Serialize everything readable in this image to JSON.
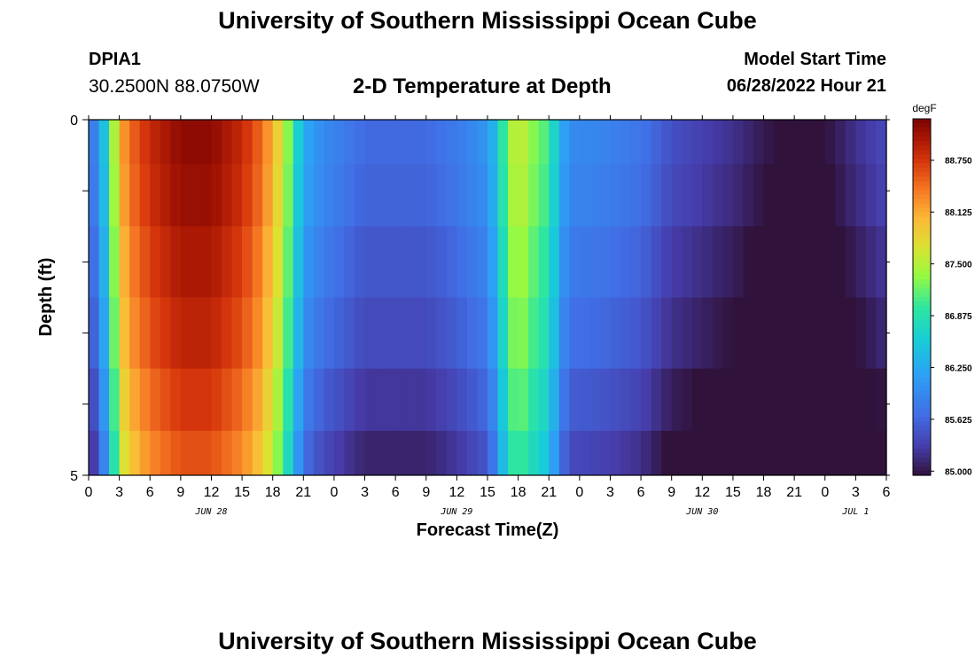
{
  "header": {
    "title": "University of Southern Mississippi Ocean Cube",
    "station": "DPIA1",
    "coordinates": "30.2500N  88.0750W",
    "subtitle": "2-D Temperature at Depth",
    "model_start_label": "Model Start Time",
    "model_start_value": "06/28/2022 Hour 21"
  },
  "footer": {
    "title": "University of Southern Mississippi Ocean Cube"
  },
  "chart_data": {
    "type": "heatmap",
    "xlabel": "Forecast Time(Z)",
    "ylabel": "Depth (ft)",
    "x_ticks": [
      "0",
      "3",
      "6",
      "9",
      "12",
      "15",
      "18",
      "21",
      "0",
      "3",
      "6",
      "9",
      "12",
      "15",
      "18",
      "21",
      "0",
      "3",
      "6",
      "9",
      "12",
      "15",
      "18",
      "21",
      "0",
      "3",
      "6"
    ],
    "x_range_hours": [
      0,
      78
    ],
    "day_labels": [
      {
        "label": "JUN 28",
        "hour": 12
      },
      {
        "label": "JUN 29",
        "hour": 36
      },
      {
        "label": "JUN 30",
        "hour": 60
      },
      {
        "label": "JUL 1",
        "hour": 75
      }
    ],
    "y_range_ft": [
      0,
      5
    ],
    "y_ticks": [
      "0",
      "5"
    ],
    "depth_levels_ft": [
      0.25,
      1.0,
      2.0,
      3.0,
      4.0,
      4.75
    ],
    "colorbar": {
      "unit": "degF",
      "min": 84.95,
      "max": 89.25,
      "ticks": [
        "88.750",
        "88.125",
        "87.500",
        "86.875",
        "86.250",
        "85.625",
        "85.000"
      ],
      "tick_values": [
        88.75,
        88.125,
        87.5,
        86.875,
        86.25,
        85.625,
        85.0
      ]
    },
    "time_profile_degF": [
      [
        0,
        85.6
      ],
      [
        1,
        86.0
      ],
      [
        2,
        86.8
      ],
      [
        3,
        88.0
      ],
      [
        4,
        88.4
      ],
      [
        6,
        88.8
      ],
      [
        9,
        89.1
      ],
      [
        12,
        89.1
      ],
      [
        15,
        88.8
      ],
      [
        17,
        88.4
      ],
      [
        18,
        88.0
      ],
      [
        19,
        87.6
      ],
      [
        20,
        86.9
      ],
      [
        21,
        86.2
      ],
      [
        23,
        85.9
      ],
      [
        27,
        85.6
      ],
      [
        33,
        85.6
      ],
      [
        36,
        85.75
      ],
      [
        39,
        86.0
      ],
      [
        40,
        86.5
      ],
      [
        41,
        87.3
      ],
      [
        42,
        87.6
      ],
      [
        43,
        87.35
      ],
      [
        44,
        87.15
      ],
      [
        45,
        87.0
      ],
      [
        46,
        86.3
      ],
      [
        47,
        85.9
      ],
      [
        50,
        85.85
      ],
      [
        54,
        85.7
      ],
      [
        57,
        85.4
      ],
      [
        63,
        85.15
      ],
      [
        68,
        84.85
      ],
      [
        70,
        84.75
      ],
      [
        72,
        84.9
      ],
      [
        75,
        85.15
      ],
      [
        78,
        85.35
      ]
    ],
    "depth_offsets_degF": [
      0.05,
      0.0,
      -0.1,
      -0.2,
      -0.35,
      -0.5
    ]
  }
}
